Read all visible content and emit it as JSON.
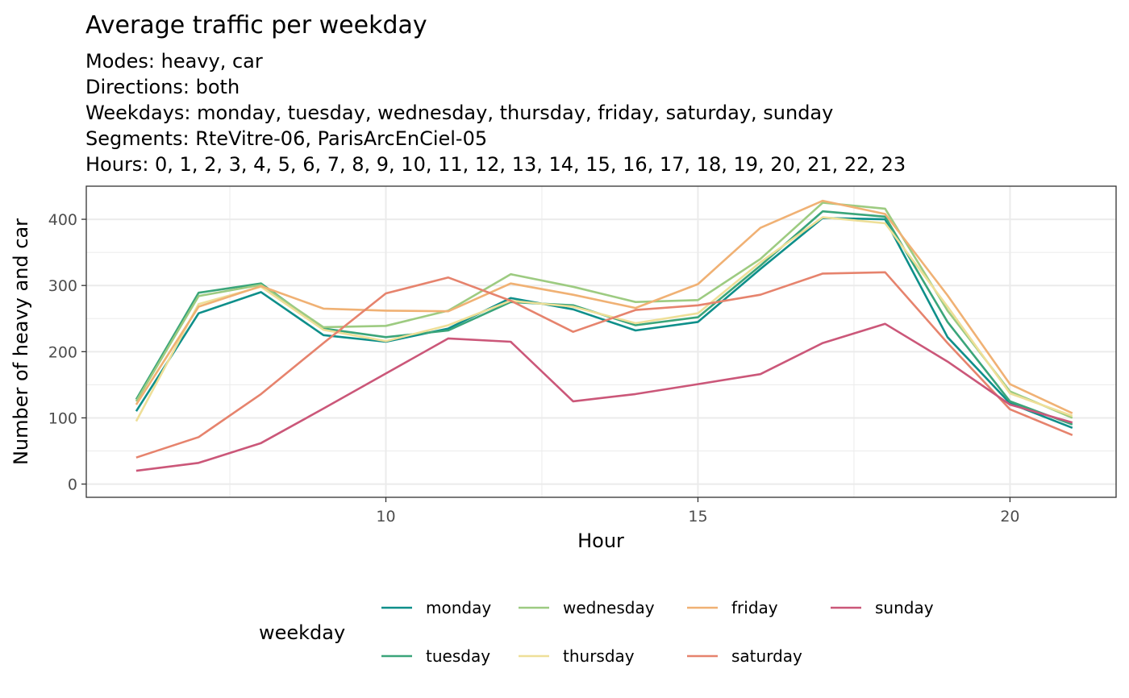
{
  "chart_data": {
    "type": "line",
    "title": "Average traffic per weekday",
    "subtitle_lines": [
      "Modes: heavy, car",
      "Directions: both",
      "Weekdays: monday, tuesday, wednesday, thursday, friday, saturday, sunday",
      "Segments: RteVitre-06, ParisArcEnCiel-05",
      "Hours: 0, 1, 2, 3, 4, 5, 6, 7, 8, 9, 10, 11, 12, 13, 14, 15, 16, 17, 18, 19, 20, 21, 22, 23"
    ],
    "xlabel": "Hour",
    "ylabel": "Number of heavy and car",
    "x": [
      6,
      7,
      8,
      9,
      10,
      11,
      12,
      13,
      14,
      15,
      16,
      17,
      18,
      19,
      20,
      21
    ],
    "xlim": [
      5.2,
      21.7
    ],
    "ylim": [
      -20,
      450
    ],
    "xticks": [
      10,
      15,
      20
    ],
    "yticks": [
      0,
      100,
      200,
      300,
      400
    ],
    "grid": true,
    "legend_title": "weekday",
    "legend_position": "bottom",
    "series": [
      {
        "name": "monday",
        "color": "#0e8f8a",
        "values": [
          110,
          258,
          290,
          225,
          215,
          235,
          281,
          264,
          232,
          245,
          325,
          402,
          400,
          222,
          122,
          85
        ]
      },
      {
        "name": "tuesday",
        "color": "#3aa57a",
        "values": [
          128,
          289,
          303,
          235,
          222,
          232,
          275,
          270,
          240,
          252,
          330,
          412,
          404,
          245,
          125,
          90
        ]
      },
      {
        "name": "wednesday",
        "color": "#9dcb81",
        "values": [
          125,
          284,
          301,
          237,
          239,
          262,
          317,
          298,
          275,
          278,
          340,
          425,
          416,
          262,
          140,
          100
        ]
      },
      {
        "name": "thursday",
        "color": "#eedf98",
        "values": [
          95,
          272,
          298,
          233,
          216,
          240,
          277,
          268,
          243,
          258,
          335,
          403,
          394,
          268,
          137,
          103
        ]
      },
      {
        "name": "friday",
        "color": "#f0b174",
        "values": [
          120,
          268,
          299,
          265,
          262,
          261,
          303,
          286,
          266,
          302,
          387,
          428,
          408,
          285,
          151,
          107
        ]
      },
      {
        "name": "saturday",
        "color": "#e6836d",
        "values": [
          40,
          71,
          136,
          213,
          288,
          312,
          277,
          230,
          263,
          270,
          286,
          318,
          320,
          213,
          113,
          74
        ]
      },
      {
        "name": "sunday",
        "color": "#cb5779",
        "values": [
          20,
          32,
          62,
          114,
          167,
          220,
          215,
          125,
          136,
          151,
          166,
          213,
          242,
          185,
          120,
          93
        ]
      }
    ]
  }
}
